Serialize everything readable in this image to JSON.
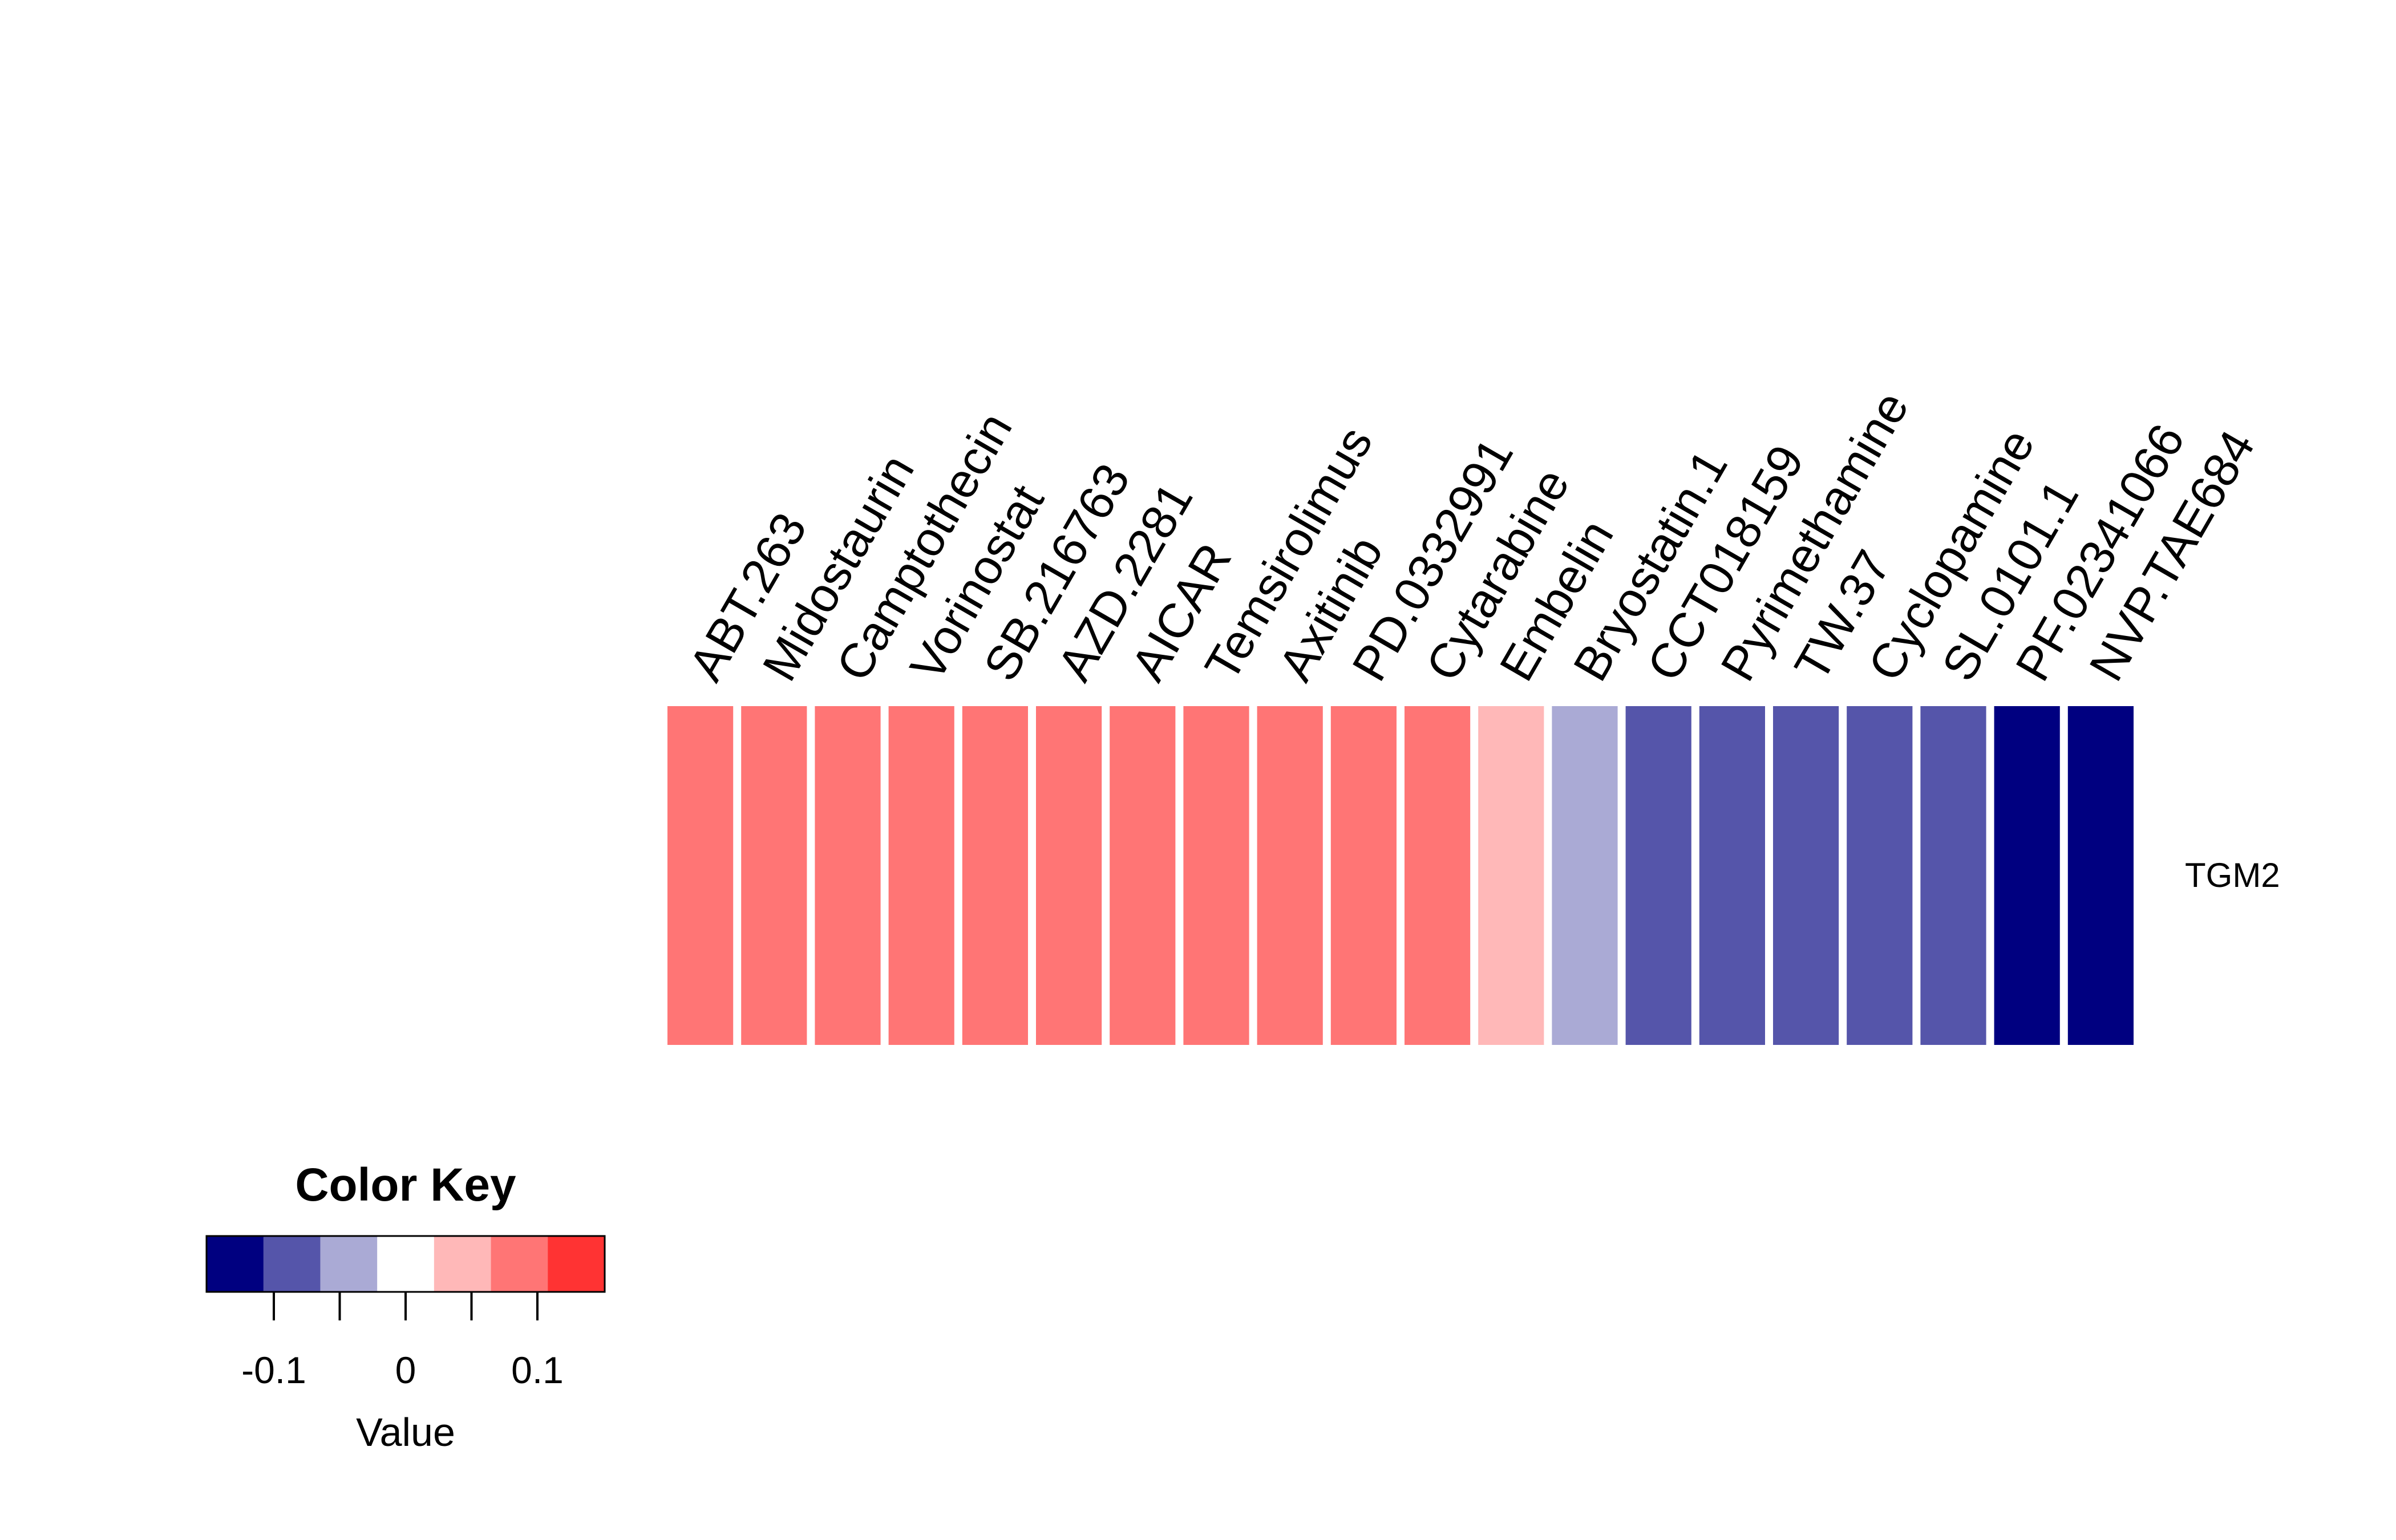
{
  "chart_data": {
    "type": "heatmap",
    "rows": [
      "TGM2"
    ],
    "columns": [
      "ABT.263",
      "Midostaurin",
      "Camptothecin",
      "Vorinostat",
      "SB.216763",
      "AZD.2281",
      "AICAR",
      "Temsirolimus",
      "Axitinib",
      "PD.0332991",
      "Cytarabine",
      "Embelin",
      "Bryostatin.1",
      "CCT018159",
      "Pyrimethamine",
      "TW.37",
      "Cyclopamine",
      "SL.0101.1",
      "PF.02341066",
      "NVP.TAE684"
    ],
    "values": [
      [
        0.1,
        0.1,
        0.1,
        0.1,
        0.1,
        0.1,
        0.1,
        0.1,
        0.1,
        0.1,
        0.1,
        0.05,
        -0.05,
        -0.1,
        -0.1,
        -0.1,
        -0.1,
        -0.1,
        -0.15,
        -0.15
      ]
    ],
    "color_key": {
      "title": "Color Key",
      "xlabel": "Value",
      "range": [
        -0.15,
        0.15
      ],
      "bins": [
        {
          "from": -0.15,
          "to": -0.1,
          "color": "#000080"
        },
        {
          "from": -0.1,
          "to": -0.05,
          "color": "#5555AA"
        },
        {
          "from": -0.05,
          "to": 0.0,
          "color": "#AAAAD5"
        },
        {
          "from": 0.0,
          "to": 0.05,
          "color": "#FFFFFF"
        },
        {
          "from": 0.05,
          "to": 0.1,
          "color": "#FFB8B8"
        },
        {
          "from": 0.1,
          "to": 0.15,
          "color": "#FF7575"
        },
        {
          "from": 0.15,
          "to": 0.2,
          "color": "#FF3333"
        }
      ],
      "ticks": [
        -0.1,
        -0.05,
        0,
        0.05,
        0.1
      ],
      "tick_labels": [
        {
          "value": -0.1,
          "label": "-0.1"
        },
        {
          "value": 0,
          "label": "0"
        },
        {
          "value": 0.1,
          "label": "0.1"
        }
      ]
    }
  }
}
